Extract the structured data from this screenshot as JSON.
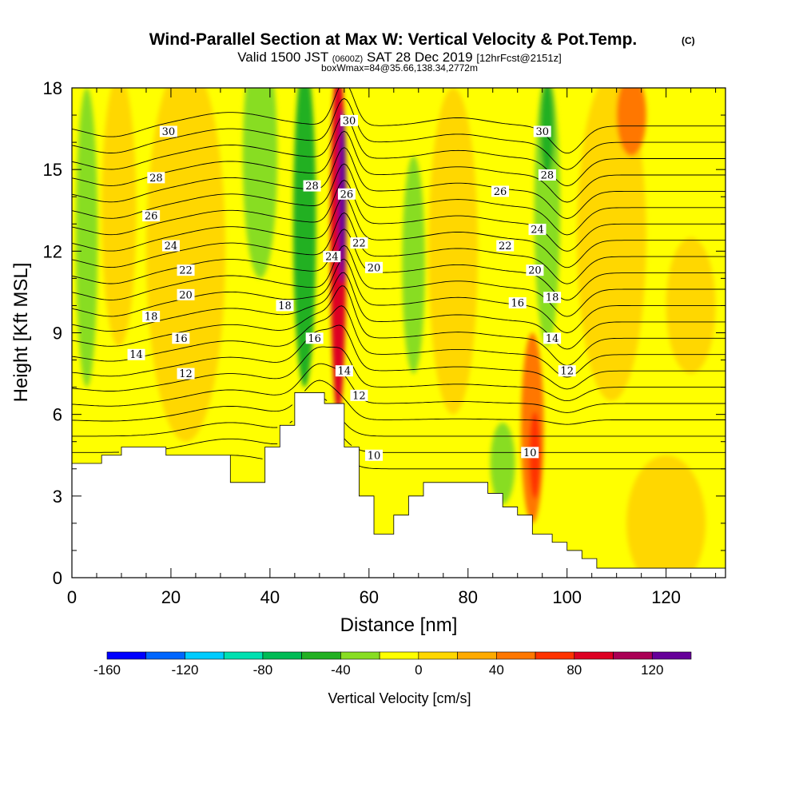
{
  "chart_data": {
    "type": "heatmap",
    "title": "Wind-Parallel Section at Max W: Vertical Velocity & Pot.Temp.",
    "title_mark": "(C)",
    "subtitle_parts": [
      "Valid 1500 JST",
      "(0600Z)",
      "SAT 28 Dec 2019",
      "[12hrFcst@2151z]"
    ],
    "subtitle2": "boxWmax=84@35.66,138.34,2772m",
    "xlabel": "Distance [nm]",
    "ylabel": "Height [Kft MSL]",
    "xlim": [
      0,
      132
    ],
    "ylim": [
      0,
      18
    ],
    "x_ticks": [
      "0",
      "20",
      "40",
      "60",
      "80",
      "100",
      "120"
    ],
    "y_ticks": [
      "0",
      "3",
      "6",
      "9",
      "12",
      "15",
      "18"
    ],
    "colorbar": {
      "label": "Vertical Velocity [cm/s]",
      "ticks": [
        "-160",
        "-120",
        "-80",
        "-40",
        "0",
        "40",
        "80",
        "120"
      ],
      "bounds": [
        -160,
        140
      ],
      "step": 20,
      "colors": [
        "#0000ff",
        "#0066ff",
        "#00ccff",
        "#00e0b0",
        "#00bb55",
        "#22b022",
        "#88dd22",
        "#ffff00",
        "#ffd700",
        "#ffaa00",
        "#ff7700",
        "#ff3300",
        "#dd0022",
        "#aa0055",
        "#660099"
      ]
    },
    "terrain": [
      [
        0,
        4.2
      ],
      [
        6,
        4.2
      ],
      [
        6,
        4.5
      ],
      [
        10,
        4.5
      ],
      [
        10,
        4.8
      ],
      [
        19,
        4.8
      ],
      [
        19,
        4.5
      ],
      [
        32,
        4.5
      ],
      [
        32,
        3.5
      ],
      [
        39,
        3.5
      ],
      [
        39,
        4.8
      ],
      [
        42,
        4.8
      ],
      [
        42,
        5.6
      ],
      [
        45,
        5.6
      ],
      [
        45,
        6.8
      ],
      [
        51,
        6.8
      ],
      [
        51,
        6.4
      ],
      [
        55,
        6.4
      ],
      [
        55,
        4.8
      ],
      [
        58,
        4.8
      ],
      [
        58,
        3.0
      ],
      [
        61,
        3.0
      ],
      [
        61,
        1.6
      ],
      [
        65,
        1.6
      ],
      [
        65,
        2.3
      ],
      [
        68,
        2.3
      ],
      [
        68,
        3.0
      ],
      [
        71,
        3.0
      ],
      [
        71,
        3.5
      ],
      [
        84,
        3.5
      ],
      [
        84,
        3.1
      ],
      [
        87,
        3.1
      ],
      [
        87,
        2.6
      ],
      [
        90,
        2.6
      ],
      [
        90,
        2.3
      ],
      [
        93,
        2.3
      ],
      [
        93,
        1.6
      ],
      [
        97,
        1.6
      ],
      [
        97,
        1.3
      ],
      [
        100,
        1.3
      ],
      [
        100,
        1.0
      ],
      [
        103,
        1.0
      ],
      [
        103,
        0.7
      ],
      [
        106,
        0.7
      ],
      [
        106,
        0.35
      ],
      [
        132,
        0.35
      ]
    ],
    "wzones": [
      {
        "x": 3,
        "y": 12.5,
        "rx": 2.2,
        "ry": 5.5,
        "w": -30
      },
      {
        "x": 9.5,
        "y": 13.5,
        "rx": 3.5,
        "ry": 5.0,
        "w": 10
      },
      {
        "x": 23,
        "y": 12,
        "rx": 8,
        "ry": 7,
        "w": 15
      },
      {
        "x": 38,
        "y": 15.5,
        "rx": 3.5,
        "ry": 4.5,
        "w": -25
      },
      {
        "x": 47,
        "y": 13,
        "rx": 2.3,
        "ry": 6,
        "w": -45
      },
      {
        "x": 53.8,
        "y": 12.5,
        "rx": 1.6,
        "ry": 6.5,
        "w": 85
      },
      {
        "x": 54.6,
        "y": 14,
        "rx": 0.8,
        "ry": 3.2,
        "w": 125
      },
      {
        "x": 69,
        "y": 11.5,
        "rx": 2.3,
        "ry": 4,
        "w": -30
      },
      {
        "x": 77,
        "y": 12,
        "rx": 5,
        "ry": 6,
        "w": 15
      },
      {
        "x": 96,
        "y": 13.5,
        "rx": 2.6,
        "ry": 5,
        "w": -40
      },
      {
        "x": 96,
        "y": 16.5,
        "rx": 1.4,
        "ry": 1.8,
        "w": -60
      },
      {
        "x": 109,
        "y": 12.5,
        "rx": 7,
        "ry": 6,
        "w": 15
      },
      {
        "x": 113,
        "y": 17,
        "rx": 3,
        "ry": 1.5,
        "w": 45
      },
      {
        "x": 93,
        "y": 5.5,
        "rx": 2.3,
        "ry": 3.5,
        "w": 45
      },
      {
        "x": 93.5,
        "y": 4.5,
        "rx": 1.2,
        "ry": 1.6,
        "w": 65
      },
      {
        "x": 87,
        "y": 4.2,
        "rx": 2.5,
        "ry": 1.5,
        "w": -30
      },
      {
        "x": 120,
        "y": 2,
        "rx": 8,
        "ry": 2.5,
        "w": 15
      },
      {
        "x": 125,
        "y": 10,
        "rx": 5,
        "ry": 2.5,
        "w": 12
      }
    ],
    "contours": {
      "levels": [
        10,
        11,
        12,
        13,
        14,
        15,
        16,
        17,
        18,
        19,
        20,
        21,
        22,
        23,
        24,
        25,
        26,
        27,
        28,
        29,
        30,
        31
      ],
      "labels": [
        {
          "text": "30",
          "x": 19.5,
          "y": 16.4
        },
        {
          "text": "28",
          "x": 17,
          "y": 14.7
        },
        {
          "text": "26",
          "x": 16,
          "y": 13.3
        },
        {
          "text": "24",
          "x": 20,
          "y": 12.2
        },
        {
          "text": "22",
          "x": 23,
          "y": 11.3
        },
        {
          "text": "20",
          "x": 23,
          "y": 10.4
        },
        {
          "text": "18",
          "x": 16,
          "y": 9.6
        },
        {
          "text": "16",
          "x": 22,
          "y": 8.8
        },
        {
          "text": "14",
          "x": 13,
          "y": 8.2
        },
        {
          "text": "12",
          "x": 23,
          "y": 7.5
        },
        {
          "text": "18",
          "x": 43,
          "y": 10.0
        },
        {
          "text": "16",
          "x": 49,
          "y": 8.8
        },
        {
          "text": "28",
          "x": 48.5,
          "y": 14.4
        },
        {
          "text": "24",
          "x": 52.5,
          "y": 11.8
        },
        {
          "text": "30",
          "x": 56,
          "y": 16.8
        },
        {
          "text": "26",
          "x": 55.5,
          "y": 14.1
        },
        {
          "text": "22",
          "x": 58,
          "y": 12.3
        },
        {
          "text": "20",
          "x": 61,
          "y": 11.4
        },
        {
          "text": "14",
          "x": 55,
          "y": 7.6
        },
        {
          "text": "12",
          "x": 58,
          "y": 6.7
        },
        {
          "text": "10",
          "x": 61,
          "y": 4.5
        },
        {
          "text": "26",
          "x": 86.5,
          "y": 14.2
        },
        {
          "text": "22",
          "x": 87.5,
          "y": 12.2
        },
        {
          "text": "16",
          "x": 90,
          "y": 10.1
        },
        {
          "text": "30",
          "x": 95,
          "y": 16.4
        },
        {
          "text": "28",
          "x": 96,
          "y": 14.8
        },
        {
          "text": "24",
          "x": 94,
          "y": 12.8
        },
        {
          "text": "20",
          "x": 93.5,
          "y": 11.3
        },
        {
          "text": "18",
          "x": 97,
          "y": 10.3
        },
        {
          "text": "14",
          "x": 97,
          "y": 8.8
        },
        {
          "text": "12",
          "x": 100,
          "y": 7.6
        },
        {
          "text": "10",
          "x": 92.5,
          "y": 4.6
        }
      ]
    }
  }
}
